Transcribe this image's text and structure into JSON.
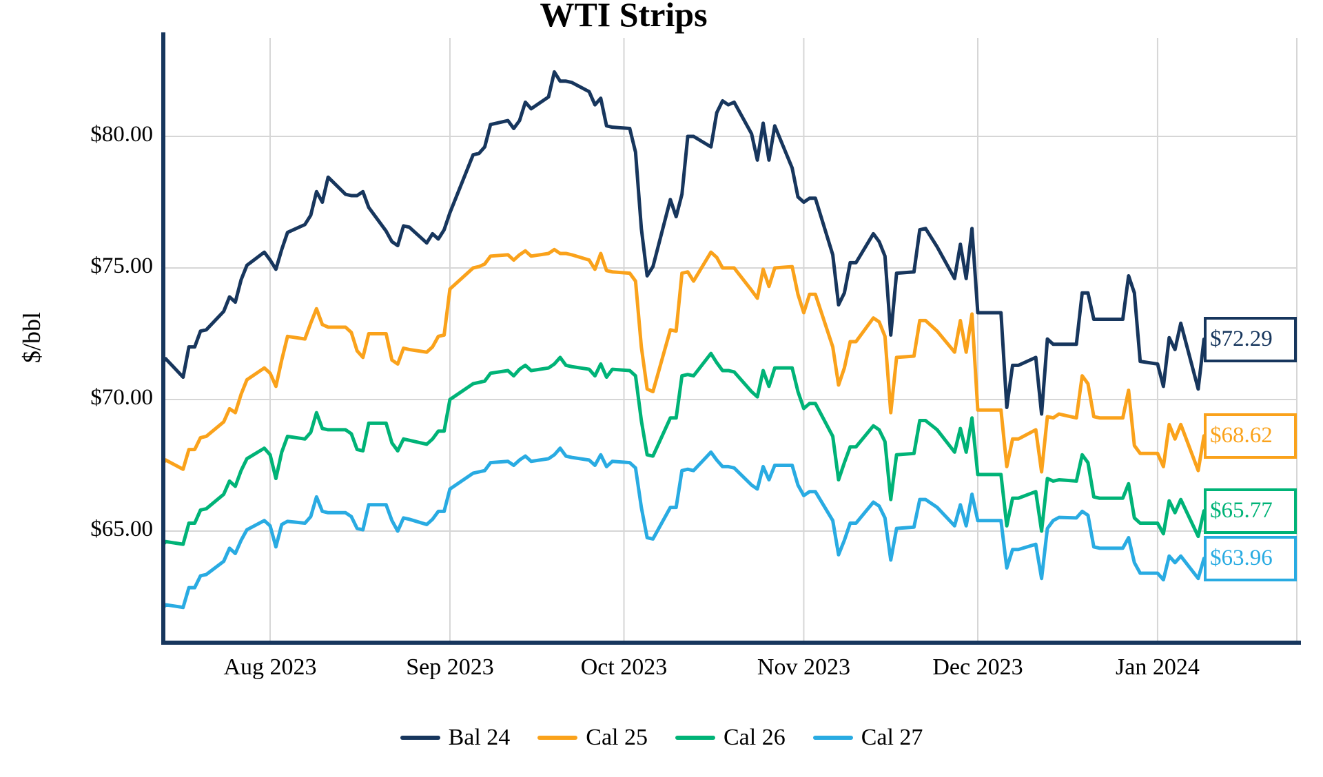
{
  "title": "WTI Strips",
  "y_axis": {
    "title": "$/bbl",
    "ticks": [
      "$80.00",
      "$75.00",
      "$70.00",
      "$65.00"
    ],
    "tick_values": [
      80,
      75,
      70,
      65
    ]
  },
  "x_axis": {
    "ticks": [
      "Aug 2023",
      "Sep 2023",
      "Oct 2023",
      "Nov 2023",
      "Dec 2023",
      "Jan 2024"
    ],
    "tick_dates": [
      "2023-08-01",
      "2023-09-01",
      "2023-10-01",
      "2023-11-01",
      "2023-12-01",
      "2024-01-01"
    ]
  },
  "legend": {
    "items": [
      {
        "label": "Bal 24",
        "color": "#17365d"
      },
      {
        "label": "Cal 25",
        "color": "#faa21b"
      },
      {
        "label": "Cal 26",
        "color": "#00b377"
      },
      {
        "label": "Cal 27",
        "color": "#29abe2"
      }
    ]
  },
  "colors": {
    "grid": "#d6d6d6",
    "axis": "#17365d",
    "background": "#ffffff"
  },
  "chart_data": {
    "type": "line",
    "title": "WTI Strips",
    "ylabel": "$/bbl",
    "ylim": [
      60.7,
      83.8
    ],
    "grid": true,
    "legend_position": "bottom",
    "x": [
      "2023-07-13",
      "2023-07-14",
      "2023-07-17",
      "2023-07-18",
      "2023-07-19",
      "2023-07-20",
      "2023-07-21",
      "2023-07-24",
      "2023-07-25",
      "2023-07-26",
      "2023-07-27",
      "2023-07-28",
      "2023-07-31",
      "2023-08-01",
      "2023-08-02",
      "2023-08-03",
      "2023-08-04",
      "2023-08-07",
      "2023-08-08",
      "2023-08-09",
      "2023-08-10",
      "2023-08-11",
      "2023-08-14",
      "2023-08-15",
      "2023-08-16",
      "2023-08-17",
      "2023-08-18",
      "2023-08-21",
      "2023-08-22",
      "2023-08-23",
      "2023-08-24",
      "2023-08-25",
      "2023-08-28",
      "2023-08-29",
      "2023-08-30",
      "2023-08-31",
      "2023-09-01",
      "2023-09-05",
      "2023-09-06",
      "2023-09-07",
      "2023-09-08",
      "2023-09-11",
      "2023-09-12",
      "2023-09-13",
      "2023-09-14",
      "2023-09-15",
      "2023-09-18",
      "2023-09-19",
      "2023-09-20",
      "2023-09-21",
      "2023-09-22",
      "2023-09-25",
      "2023-09-26",
      "2023-09-27",
      "2023-09-28",
      "2023-09-29",
      "2023-10-02",
      "2023-10-03",
      "2023-10-04",
      "2023-10-05",
      "2023-10-06",
      "2023-10-09",
      "2023-10-10",
      "2023-10-11",
      "2023-10-12",
      "2023-10-13",
      "2023-10-16",
      "2023-10-17",
      "2023-10-18",
      "2023-10-19",
      "2023-10-20",
      "2023-10-23",
      "2023-10-24",
      "2023-10-25",
      "2023-10-26",
      "2023-10-27",
      "2023-10-30",
      "2023-10-31",
      "2023-11-01",
      "2023-11-02",
      "2023-11-03",
      "2023-11-06",
      "2023-11-07",
      "2023-11-08",
      "2023-11-09",
      "2023-11-10",
      "2023-11-13",
      "2023-11-14",
      "2023-11-15",
      "2023-11-16",
      "2023-11-17",
      "2023-11-20",
      "2023-11-21",
      "2023-11-22",
      "2023-11-24",
      "2023-11-27",
      "2023-11-28",
      "2023-11-29",
      "2023-11-30",
      "2023-12-01",
      "2023-12-04",
      "2023-12-05",
      "2023-12-06",
      "2023-12-07",
      "2023-12-08",
      "2023-12-11",
      "2023-12-12",
      "2023-12-13",
      "2023-12-14",
      "2023-12-15",
      "2023-12-18",
      "2023-12-19",
      "2023-12-20",
      "2023-12-21",
      "2023-12-22",
      "2023-12-26",
      "2023-12-27",
      "2023-12-28",
      "2023-12-29",
      "2024-01-01",
      "2024-01-02",
      "2024-01-03",
      "2024-01-04",
      "2024-01-05",
      "2024-01-08",
      "2024-01-09"
    ],
    "series": [
      {
        "name": "Bal 24",
        "color": "#17365d",
        "end_label": "$72.29",
        "end_value": 72.29,
        "values": [
          71.5,
          71.55,
          70.85,
          72.0,
          72.0,
          72.6,
          72.65,
          73.35,
          73.9,
          73.7,
          74.55,
          75.1,
          75.6,
          75.3,
          74.95,
          75.7,
          76.35,
          76.65,
          77.0,
          77.9,
          77.5,
          78.45,
          77.8,
          77.75,
          77.75,
          77.9,
          77.3,
          76.4,
          76.0,
          75.85,
          76.6,
          76.55,
          75.95,
          76.3,
          76.1,
          76.45,
          77.1,
          79.3,
          79.35,
          79.6,
          80.45,
          80.6,
          80.3,
          80.6,
          81.3,
          81.05,
          81.5,
          82.45,
          82.1,
          82.1,
          82.05,
          81.7,
          81.2,
          81.45,
          80.4,
          80.35,
          80.3,
          79.4,
          76.5,
          74.7,
          75.05,
          77.6,
          76.95,
          77.8,
          80.0,
          80.0,
          79.6,
          80.9,
          81.35,
          81.2,
          81.3,
          80.1,
          79.1,
          80.5,
          79.1,
          80.4,
          78.8,
          77.7,
          77.5,
          77.65,
          77.65,
          75.5,
          73.6,
          74.05,
          75.2,
          75.2,
          76.3,
          76.0,
          75.45,
          72.45,
          74.8,
          74.85,
          76.45,
          76.5,
          75.8,
          74.6,
          75.9,
          74.6,
          76.5,
          73.3,
          73.3,
          73.3,
          69.7,
          71.3,
          71.3,
          71.6,
          69.45,
          72.3,
          72.1,
          72.1,
          72.1,
          74.05,
          74.05,
          73.05,
          73.05,
          73.05,
          74.7,
          74.05,
          71.45,
          71.35,
          70.5,
          72.35,
          71.9,
          72.9,
          70.4,
          72.29
        ]
      },
      {
        "name": "Cal 25",
        "color": "#faa21b",
        "end_label": "$68.62",
        "end_value": 68.62,
        "values": [
          67.65,
          67.7,
          67.35,
          68.1,
          68.1,
          68.55,
          68.6,
          69.15,
          69.65,
          69.5,
          70.2,
          70.75,
          71.2,
          71.0,
          70.5,
          71.5,
          72.4,
          72.3,
          72.9,
          73.45,
          72.85,
          72.75,
          72.75,
          72.55,
          71.85,
          71.6,
          72.5,
          72.5,
          71.5,
          71.35,
          71.95,
          71.9,
          71.8,
          72.0,
          72.4,
          72.45,
          74.2,
          75.0,
          75.05,
          75.15,
          75.45,
          75.5,
          75.3,
          75.5,
          75.65,
          75.45,
          75.55,
          75.7,
          75.55,
          75.55,
          75.5,
          75.3,
          74.95,
          75.55,
          74.9,
          74.85,
          74.8,
          74.5,
          72.0,
          70.4,
          70.3,
          72.65,
          72.6,
          74.8,
          74.85,
          74.5,
          75.6,
          75.4,
          75.0,
          75.0,
          75.0,
          74.15,
          73.85,
          74.95,
          74.3,
          75.0,
          75.05,
          74.0,
          73.3,
          74.0,
          74.0,
          72.0,
          70.55,
          71.2,
          72.2,
          72.2,
          73.1,
          72.95,
          72.4,
          69.5,
          71.6,
          71.65,
          73.0,
          73.0,
          72.6,
          71.8,
          73.0,
          71.8,
          73.25,
          69.6,
          69.6,
          69.6,
          67.45,
          68.5,
          68.5,
          68.85,
          67.25,
          69.35,
          69.3,
          69.45,
          69.3,
          70.9,
          70.6,
          69.35,
          69.3,
          69.3,
          70.35,
          68.25,
          67.95,
          67.95,
          67.45,
          69.05,
          68.5,
          69.05,
          67.3,
          68.62
        ]
      },
      {
        "name": "Cal 26",
        "color": "#00b377",
        "end_label": "$65.77",
        "end_value": 65.77,
        "values": [
          64.55,
          64.6,
          64.5,
          65.3,
          65.3,
          65.8,
          65.85,
          66.4,
          66.9,
          66.7,
          67.3,
          67.75,
          68.15,
          67.9,
          67.0,
          68.0,
          68.6,
          68.5,
          68.75,
          69.5,
          68.9,
          68.85,
          68.85,
          68.7,
          68.1,
          68.05,
          69.1,
          69.1,
          68.35,
          68.05,
          68.5,
          68.45,
          68.3,
          68.5,
          68.8,
          68.8,
          70.0,
          70.6,
          70.65,
          70.7,
          71.0,
          71.1,
          70.9,
          71.15,
          71.3,
          71.1,
          71.2,
          71.35,
          71.6,
          71.3,
          71.25,
          71.15,
          70.9,
          71.35,
          70.85,
          71.15,
          71.1,
          70.9,
          69.2,
          67.9,
          67.85,
          69.3,
          69.3,
          70.9,
          70.95,
          70.9,
          71.75,
          71.4,
          71.1,
          71.1,
          71.05,
          70.3,
          70.1,
          71.1,
          70.5,
          71.2,
          71.2,
          70.3,
          69.66,
          69.85,
          69.85,
          68.6,
          66.95,
          67.6,
          68.2,
          68.2,
          69.0,
          68.85,
          68.4,
          66.2,
          67.9,
          67.95,
          69.2,
          69.2,
          68.85,
          68.0,
          68.9,
          68.0,
          69.3,
          67.15,
          67.15,
          67.15,
          65.2,
          66.25,
          66.25,
          66.5,
          65.0,
          67.0,
          66.9,
          66.95,
          66.9,
          67.9,
          67.6,
          66.3,
          66.25,
          66.25,
          66.8,
          65.5,
          65.3,
          65.3,
          64.9,
          66.15,
          65.7,
          66.2,
          64.8,
          65.77
        ]
      },
      {
        "name": "Cal 27",
        "color": "#29abe2",
        "end_label": "$63.96",
        "end_value": 63.96,
        "values": [
          62.15,
          62.2,
          62.1,
          62.85,
          62.85,
          63.3,
          63.35,
          63.85,
          64.35,
          64.15,
          64.65,
          65.05,
          65.4,
          65.2,
          64.4,
          65.25,
          65.37,
          65.3,
          65.55,
          66.3,
          65.75,
          65.7,
          65.7,
          65.55,
          65.1,
          65.05,
          66.0,
          66.0,
          65.4,
          65.0,
          65.5,
          65.45,
          65.25,
          65.45,
          65.75,
          65.75,
          66.6,
          67.2,
          67.25,
          67.3,
          67.6,
          67.65,
          67.5,
          67.7,
          67.85,
          67.65,
          67.75,
          67.9,
          68.15,
          67.85,
          67.8,
          67.7,
          67.5,
          67.9,
          67.45,
          67.65,
          67.6,
          67.4,
          65.9,
          64.75,
          64.7,
          65.9,
          65.9,
          67.3,
          67.35,
          67.3,
          68.0,
          67.7,
          67.45,
          67.45,
          67.4,
          66.75,
          66.6,
          67.45,
          66.95,
          67.5,
          67.5,
          66.75,
          66.35,
          66.5,
          66.5,
          65.4,
          64.1,
          64.65,
          65.3,
          65.3,
          66.1,
          65.95,
          65.5,
          63.9,
          65.1,
          65.15,
          66.2,
          66.2,
          65.9,
          65.2,
          66.0,
          65.2,
          66.4,
          65.4,
          65.4,
          65.4,
          63.6,
          64.3,
          64.3,
          64.5,
          63.2,
          65.1,
          65.4,
          65.52,
          65.5,
          65.75,
          65.6,
          64.4,
          64.35,
          64.35,
          64.75,
          63.8,
          63.4,
          63.4,
          63.15,
          64.05,
          63.8,
          64.05,
          63.2,
          63.96
        ]
      }
    ]
  }
}
